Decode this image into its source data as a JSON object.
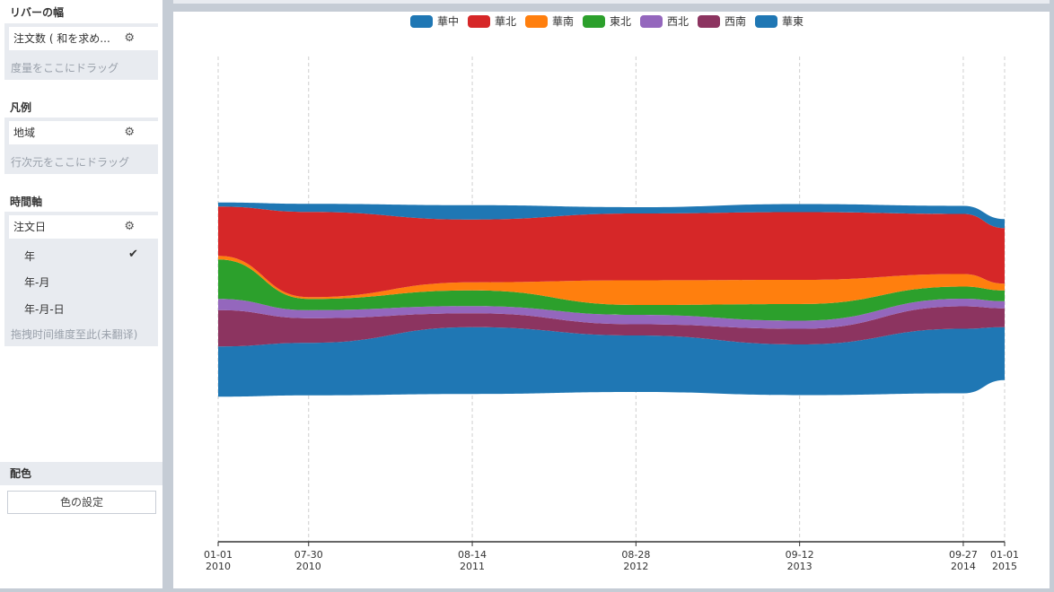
{
  "sidebar": {
    "width_section": {
      "title": "リバーの幅",
      "field": "注文数 ( 和を求め...",
      "placeholder": "度量をここにドラッグ"
    },
    "legend_section": {
      "title": "凡例",
      "field": "地域",
      "placeholder": "行次元をここにドラッグ"
    },
    "time_section": {
      "title": "時間軸",
      "field": "注文日",
      "options": [
        "年",
        "年-月",
        "年-月-日"
      ],
      "selected": "年",
      "placeholder": "拖拽时间维度至此(未翻译)"
    },
    "color_section": {
      "title": "配色",
      "button": "色の設定"
    },
    "icons": {
      "settings": "gear-icon",
      "check": "check-icon"
    }
  },
  "chart_data": {
    "type": "area",
    "subtype": "streamgraph",
    "title": "",
    "xlabel": "",
    "ylabel": "",
    "legend_position": "top-center",
    "x": [
      "2010-01-01",
      "2010-07-30",
      "2011-08-14",
      "2012-08-28",
      "2013-09-12",
      "2014-09-27",
      "2015-01-01"
    ],
    "tick_labels": [
      {
        "date": "01-01",
        "year": "2010"
      },
      {
        "date": "07-30",
        "year": "2010"
      },
      {
        "date": "08-14",
        "year": "2011"
      },
      {
        "date": "08-28",
        "year": "2012"
      },
      {
        "date": "09-12",
        "year": "2013"
      },
      {
        "date": "09-27",
        "year": "2014"
      },
      {
        "date": "01-01",
        "year": "2015"
      }
    ],
    "grid": "vertical-dashed",
    "series": [
      {
        "name": "華東",
        "color": "#1f77b4",
        "values": [
          112,
          117,
          149,
          126,
          113,
          144,
          118
        ]
      },
      {
        "name": "西南",
        "color": "#8c3460",
        "values": [
          81,
          55,
          31,
          25,
          35,
          50,
          42
        ]
      },
      {
        "name": "西北",
        "color": "#9467bd",
        "values": [
          25,
          18,
          16,
          21,
          18,
          17,
          16
        ]
      },
      {
        "name": "東北",
        "color": "#2ca02c",
        "values": [
          88,
          25,
          35,
          22,
          37,
          27,
          24
        ]
      },
      {
        "name": "華南",
        "color": "#ff7f0e",
        "values": [
          8,
          4,
          18,
          55,
          54,
          28,
          15
        ]
      },
      {
        "name": "華北",
        "color": "#d62728",
        "values": [
          110,
          190,
          140,
          149,
          151,
          134,
          124
        ]
      },
      {
        "name": "華中",
        "color": "#1f77b4",
        "values": [
          9,
          18,
          32,
          14,
          18,
          18,
          20
        ]
      }
    ],
    "legend_order": [
      "華中",
      "華北",
      "華南",
      "東北",
      "西北",
      "西南",
      "華東"
    ]
  }
}
